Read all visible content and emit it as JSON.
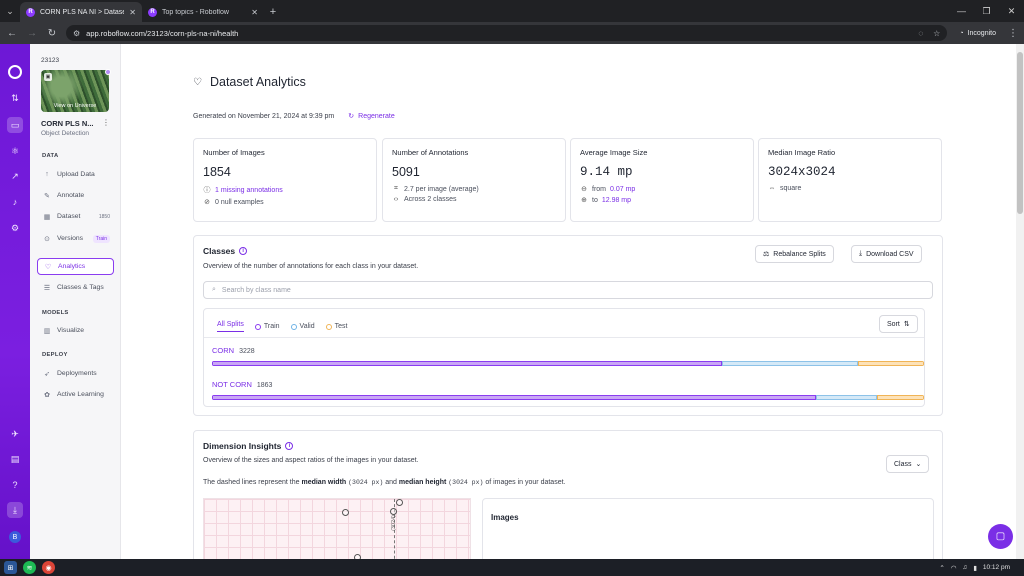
{
  "browser": {
    "tabs": [
      {
        "title": "CORN PLS NA NI > Dataset Ana",
        "active": true
      },
      {
        "title": "Top topics - Roboflow",
        "active": false
      }
    ],
    "url": "app.roboflow.com/23123/corn-pls-na-ni/health",
    "incognito_label": "Incognito"
  },
  "sidebar": {
    "workspace_id": "23123",
    "thumbnail_label": "View on Universe",
    "project_name": "CORN PLS N...",
    "project_type": "Object Detection",
    "sections": {
      "data": "DATA",
      "models": "MODELS",
      "deploy": "DEPLOY"
    },
    "items": {
      "upload": "Upload Data",
      "annotate": "Annotate",
      "dataset": "Dataset",
      "dataset_count": "1850",
      "versions": "Versions",
      "versions_badge": "Train",
      "analytics": "Analytics",
      "classes": "Classes & Tags",
      "visualize": "Visualize",
      "deployments": "Deployments",
      "active_learning": "Active Learning"
    },
    "avatar_initial": "B"
  },
  "page": {
    "title": "Dataset Analytics",
    "generated": "Generated on November 21, 2024 at 9:39 pm",
    "regenerate": "Regenerate"
  },
  "stats": {
    "images": {
      "label": "Number of Images",
      "value": "1854",
      "sub1": "1 missing annotations",
      "sub2": "0 null examples"
    },
    "annotations": {
      "label": "Number of Annotations",
      "value": "5091",
      "sub1": "2.7 per image (average)",
      "sub2": "Across 2 classes"
    },
    "avg_size": {
      "label": "Average Image Size",
      "value": "9.14 mp",
      "from_label": "from",
      "from_value": "0.07 mp",
      "to_label": "to",
      "to_value": "12.98 mp"
    },
    "ratio": {
      "label": "Median Image Ratio",
      "value": "3024x3024",
      "sub1": "square"
    }
  },
  "classes_panel": {
    "title": "Classes",
    "subtitle": "Overview of the number of annotations for each class in your dataset.",
    "rebalance": "Rebalance Splits",
    "download": "Download CSV",
    "search_placeholder": "Search by class name",
    "split_tabs": {
      "all": "All Splits",
      "train": "Train",
      "valid": "Valid",
      "test": "Test"
    },
    "sort": "Sort",
    "rows": [
      {
        "name": "CORN",
        "count": "3228",
        "train": 0.716,
        "valid": 0.192,
        "test": 0.092
      },
      {
        "name": "NOT CORN",
        "count": "1863",
        "train": 0.849,
        "valid": 0.085,
        "test": 0.066
      }
    ]
  },
  "dimension_panel": {
    "title": "Dimension Insights",
    "subtitle": "Overview of the sizes and aspect ratios of the images in your dataset.",
    "class_select": "Class",
    "desc_prefix": "The dashed lines represent the",
    "median_width": "median width",
    "median_width_val": "(3024 px)",
    "and": "and",
    "median_height": "median height",
    "median_height_val": "(3024 px)",
    "desc_suffix": "of images in your dataset.",
    "median_marker": "(3024)",
    "images_title": "Images"
  },
  "taskbar": {
    "time": "10:12 pm"
  },
  "colors": {
    "accent": "#7a2ee6",
    "train": "#c9a7f5",
    "valid": "#d5e9f7",
    "test": "#fde2b8"
  }
}
